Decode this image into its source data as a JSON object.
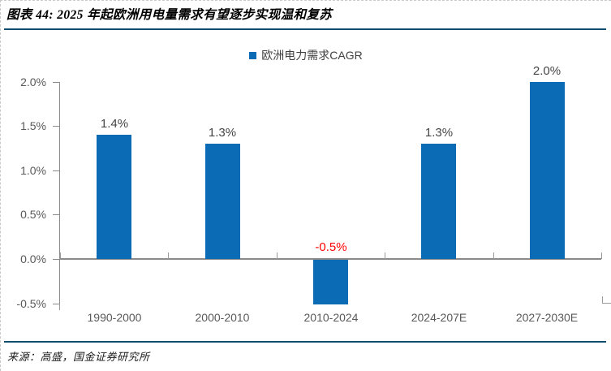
{
  "chart_data": {
    "type": "bar",
    "title": "图表 44: 2025 年起欧洲用电量需求有望逐步实现温和复苏",
    "source": "来源：高盛，国金证券研究所",
    "legend": [
      {
        "label": "欧洲电力需求CAGR",
        "color": "#0B6CB5",
        "marker": "square-icon"
      }
    ],
    "legend_position": "top-center",
    "categories": [
      "1990-2000",
      "2000-2010",
      "2010-2024",
      "2024-207E",
      "2027-2030E"
    ],
    "series": [
      {
        "name": "欧洲电力需求CAGR",
        "values": [
          1.4,
          1.3,
          -0.5,
          1.3,
          2.0
        ]
      }
    ],
    "value_labels": [
      "1.4%",
      "1.3%",
      "-0.5%",
      "1.3%",
      "2.0%"
    ],
    "value_label_colors": [
      "#454545",
      "#454545",
      "#FF0000",
      "#454545",
      "#454545"
    ],
    "unit": "%",
    "ylim": [
      -0.5,
      2.0
    ],
    "yticks": [
      {
        "label": "2.0%",
        "value": 2.0
      },
      {
        "label": "1.5%",
        "value": 1.5
      },
      {
        "label": "1.0%",
        "value": 1.0
      },
      {
        "label": "0.5%",
        "value": 0.5
      },
      {
        "label": "0.0%",
        "value": 0.0
      },
      {
        "label": "-0.5%",
        "value": -0.5
      }
    ],
    "grid": false,
    "bar_color": "#0B6CB5"
  },
  "colors": {
    "bar_blue": "#0B6CB5",
    "rule_navy": "#0F4D6E",
    "negative_red": "#FF0000",
    "axis_gray": "#8A8A8A",
    "tick_label_gray": "#595959",
    "value_label_gray": "#454545",
    "page_border_gray": "#C9C9C9"
  }
}
